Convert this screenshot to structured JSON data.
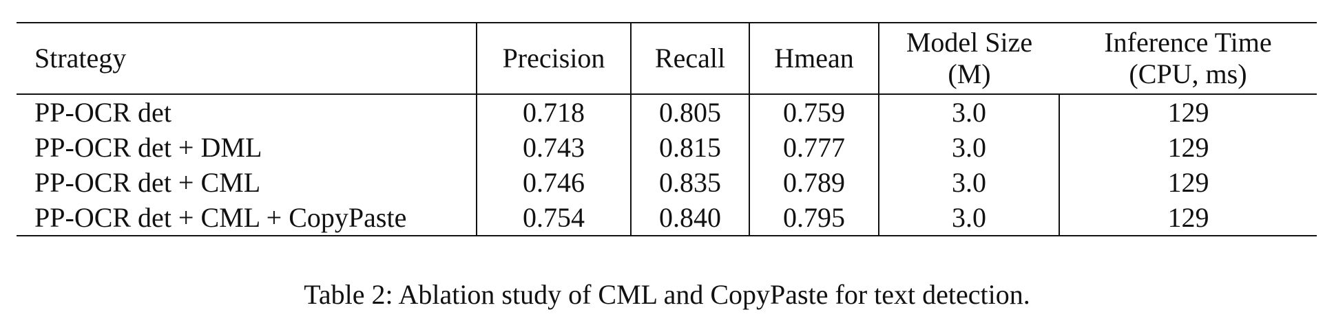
{
  "table": {
    "headers": [
      {
        "line1": "Strategy",
        "line2": ""
      },
      {
        "line1": "Precision",
        "line2": ""
      },
      {
        "line1": "Recall",
        "line2": ""
      },
      {
        "line1": "Hmean",
        "line2": ""
      },
      {
        "line1": "Model Size",
        "line2": "(M)"
      },
      {
        "line1": "Inference Time",
        "line2": "(CPU, ms)"
      }
    ],
    "rows": [
      [
        "PP-OCR det",
        "0.718",
        "0.805",
        "0.759",
        "3.0",
        "129"
      ],
      [
        "PP-OCR det + DML",
        "0.743",
        "0.815",
        "0.777",
        "3.0",
        "129"
      ],
      [
        "PP-OCR det + CML",
        "0.746",
        "0.835",
        "0.789",
        "3.0",
        "129"
      ],
      [
        "PP-OCR det + CML + CopyPaste",
        "0.754",
        "0.840",
        "0.795",
        "3.0",
        "129"
      ]
    ]
  },
  "caption": "Table 2: Ablation study of CML and CopyPaste for text detection."
}
